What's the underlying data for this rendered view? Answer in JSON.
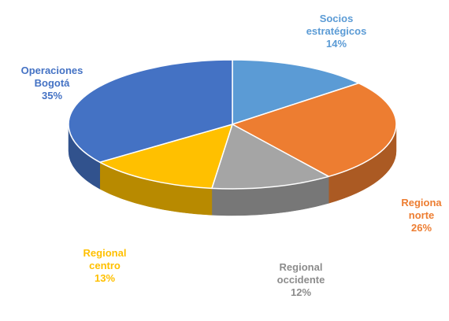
{
  "chart_data": {
    "type": "pie",
    "style": "3d",
    "slices": [
      {
        "label_lines": [
          "Socios",
          "estratégicos"
        ],
        "percent_label": "14%",
        "value": 14,
        "color": "#5b9bd5"
      },
      {
        "label_lines": [
          "Regiona",
          "norte"
        ],
        "percent_label": "26%",
        "value": 26,
        "color": "#ed7d31"
      },
      {
        "label_lines": [
          "Regional",
          "occidente"
        ],
        "percent_label": "12%",
        "value": 12,
        "color": "#a5a5a5"
      },
      {
        "label_lines": [
          "Regional",
          "centro"
        ],
        "percent_label": "13%",
        "value": 13,
        "color": "#ffc000"
      },
      {
        "label_lines": [
          "Operaciones",
          "Bogotá"
        ],
        "percent_label": "35%",
        "value": 35,
        "color": "#4472c4"
      }
    ]
  }
}
